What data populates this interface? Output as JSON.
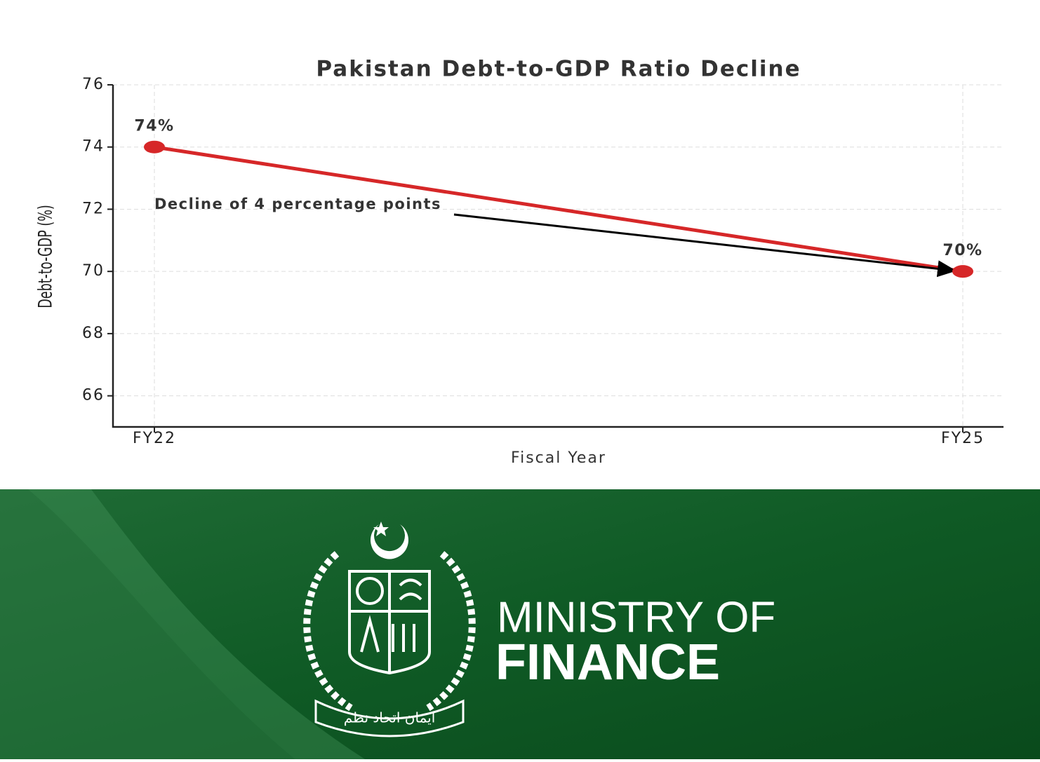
{
  "chart_data": {
    "type": "line",
    "title": "Pakistan Debt-to-GDP Ratio Decline",
    "x_label": "Fiscal Year",
    "y_label": "Debt-to-GDP (%)",
    "categories": [
      "FY22",
      "FY25"
    ],
    "values": [
      74,
      70
    ],
    "value_labels": [
      "74%",
      "70%"
    ],
    "color": "#d62728",
    "ylim": [
      65,
      76
    ],
    "yticks": [
      66,
      68,
      70,
      72,
      74,
      76
    ],
    "grid": true,
    "annotation": "Decline of 4 percentage points"
  },
  "banner": {
    "line1": "MINISTRY OF",
    "line2": "FINANCE",
    "motto": "ایمان اتحاد نظم"
  }
}
